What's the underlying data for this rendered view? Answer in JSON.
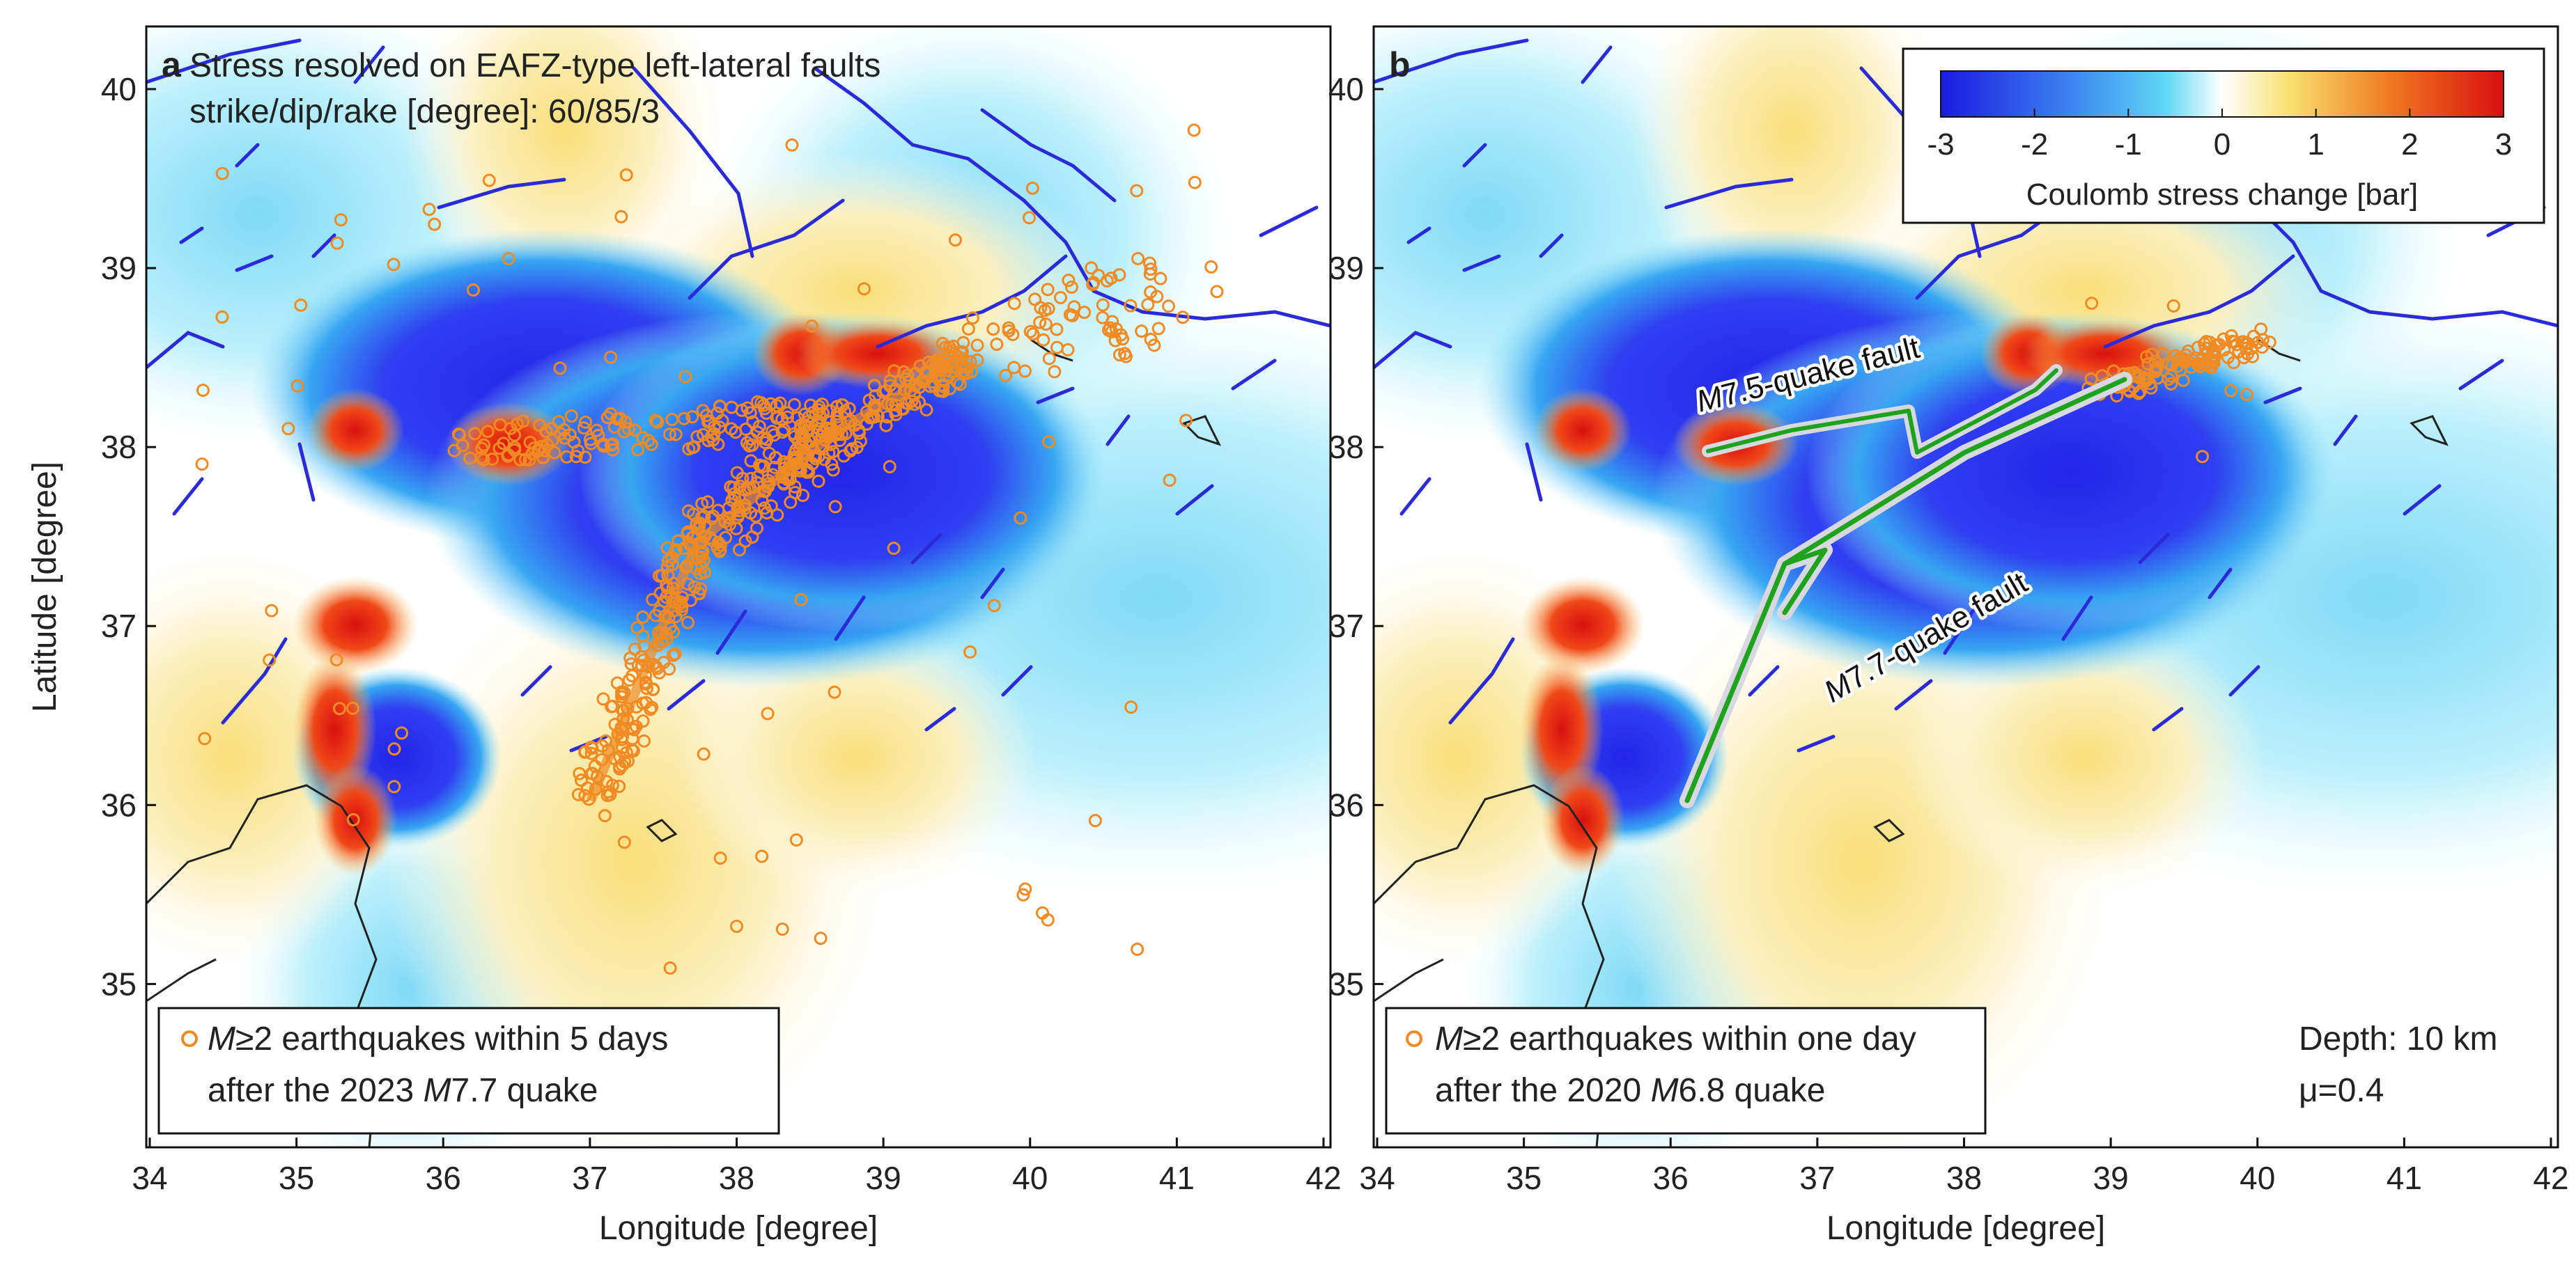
{
  "figure": {
    "panels": [
      {
        "id": "a",
        "letter": "a",
        "title_line1": "Stress resolved on EAFZ-type left-lateral faults",
        "title_line2": "strike/dip/rake [degree]: 60/85/3",
        "legend_line1_prefix": "M",
        "legend_line1_rest": "≥2 earthquakes within 5 days",
        "legend_line2_prefix": "after the 2023 ",
        "legend_line2_italic": "M",
        "legend_line2_suffix": "7.7 quake",
        "xlabel": "Longitude [degree]",
        "ylabel": "Latitude [degree]",
        "xticks": [
          "34",
          "35",
          "36",
          "37",
          "38",
          "39",
          "40",
          "41",
          "42"
        ],
        "yticks": [
          "35",
          "36",
          "37",
          "38",
          "39",
          "40"
        ]
      },
      {
        "id": "b",
        "letter": "b",
        "legend_line1_prefix": "M",
        "legend_line1_rest": "≥2 earthquakes within one day",
        "legend_line2_prefix": "after the 2020 ",
        "legend_line2_italic": "M",
        "legend_line2_suffix": "6.8 quake",
        "fault_label_1_italic": "M",
        "fault_label_1_rest": "7.5-quake fault",
        "fault_label_2_italic": "M",
        "fault_label_2_rest": "7.7-quake fault",
        "depth_text": "Depth: 10 km",
        "mu_text": "μ=0.4",
        "xlabel": "Longitude [degree]",
        "xticks": [
          "34",
          "35",
          "36",
          "37",
          "38",
          "39",
          "40",
          "41",
          "42"
        ],
        "yticks": [
          "35",
          "36",
          "37",
          "38",
          "39",
          "40"
        ]
      }
    ],
    "colorbar": {
      "label": "Coulomb stress change [bar]",
      "ticks": [
        "-3",
        "-2",
        "-1",
        "0",
        "1",
        "2",
        "3"
      ],
      "range": [
        -3,
        3
      ]
    },
    "colors": {
      "neg_strong": "#2b2be6",
      "neg_light": "#bff0fb",
      "pos_light": "#fbf0bf",
      "pos_strong": "#e61e1e",
      "fault_lines": "#2a2ad8",
      "quake_markers": "#f08a24",
      "rupture_outer": "#d8d8e0",
      "rupture_inner": "#1fa31f"
    }
  }
}
